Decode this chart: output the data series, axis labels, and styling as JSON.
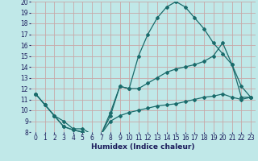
{
  "xlabel": "Humidex (Indice chaleur)",
  "bg_color": "#c0e8e8",
  "grid_color": "#c8a8a8",
  "line_color": "#1a6b6b",
  "xlim": [
    -0.5,
    23.5
  ],
  "ylim": [
    8,
    20
  ],
  "xticks": [
    0,
    1,
    2,
    3,
    4,
    5,
    6,
    7,
    8,
    9,
    10,
    11,
    12,
    13,
    14,
    15,
    16,
    17,
    18,
    19,
    20,
    21,
    22,
    23
  ],
  "yticks": [
    8,
    9,
    10,
    11,
    12,
    13,
    14,
    15,
    16,
    17,
    18,
    19,
    20
  ],
  "line1_x": [
    0,
    1,
    2,
    3,
    4,
    5,
    6,
    7,
    8,
    9,
    10,
    11,
    12,
    13,
    14,
    15,
    16,
    17,
    18,
    19,
    20,
    21,
    22,
    23
  ],
  "line1_y": [
    11.5,
    10.5,
    9.5,
    9.0,
    8.3,
    8.3,
    7.8,
    7.8,
    9.5,
    12.2,
    12.0,
    12.0,
    12.5,
    13.0,
    13.5,
    13.8,
    14.0,
    14.2,
    14.5,
    15.0,
    16.2,
    14.2,
    11.2,
    11.2
  ],
  "line2_x": [
    0,
    1,
    2,
    3,
    4,
    5,
    6,
    7,
    8,
    9,
    10,
    11,
    12,
    13,
    14,
    15,
    16,
    17,
    18,
    19,
    20,
    21,
    22,
    23
  ],
  "line2_y": [
    11.5,
    10.5,
    9.5,
    8.5,
    8.2,
    8.0,
    7.8,
    7.8,
    9.0,
    9.5,
    9.8,
    10.0,
    10.2,
    10.4,
    10.5,
    10.6,
    10.8,
    11.0,
    11.2,
    11.3,
    11.5,
    11.2,
    11.0,
    11.2
  ],
  "line3_x": [
    0,
    1,
    2,
    3,
    4,
    5,
    6,
    7,
    8,
    9,
    10,
    11,
    12,
    13,
    14,
    15,
    16,
    17,
    18,
    19,
    20,
    21,
    22,
    23
  ],
  "line3_y": [
    11.5,
    10.5,
    9.5,
    8.5,
    8.2,
    8.0,
    7.8,
    7.8,
    9.8,
    12.2,
    12.0,
    15.0,
    17.0,
    18.5,
    19.5,
    20.0,
    19.5,
    18.5,
    17.5,
    16.2,
    15.2,
    14.2,
    12.2,
    11.2
  ],
  "tick_fontsize": 5.5,
  "xlabel_fontsize": 6.5
}
